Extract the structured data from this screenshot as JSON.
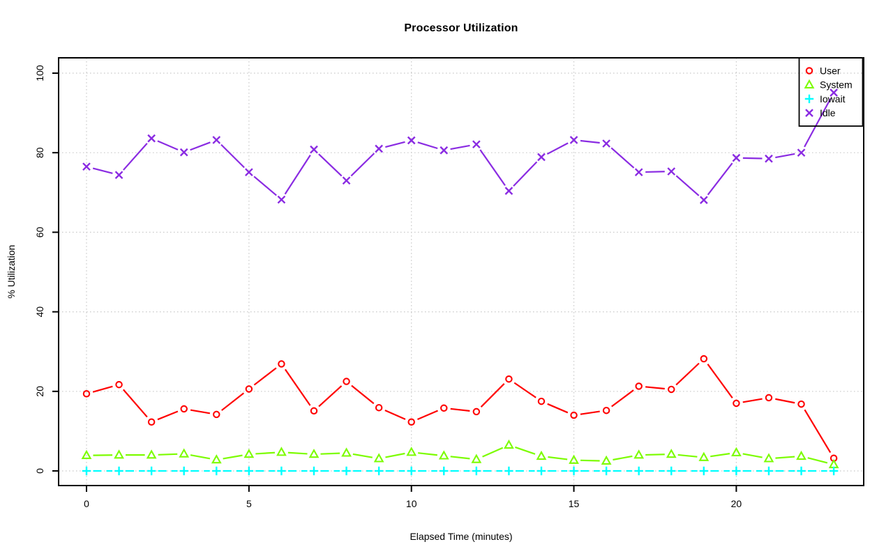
{
  "chart_data": {
    "type": "line",
    "title": "Processor Utilization",
    "xlabel": "Elapsed Time (minutes)",
    "ylabel": "% Utilization",
    "x": [
      0,
      1,
      2,
      3,
      4,
      5,
      6,
      7,
      8,
      9,
      10,
      11,
      12,
      13,
      14,
      15,
      16,
      17,
      18,
      19,
      20,
      21,
      22,
      23
    ],
    "xticks": [
      0,
      5,
      10,
      15,
      20
    ],
    "yticks": [
      0,
      20,
      40,
      60,
      80,
      100
    ],
    "xlim": [
      0,
      23.9
    ],
    "ylim": [
      0,
      100
    ],
    "grid": "dotted",
    "grid_color": "#c8c8c8",
    "box_color": "#000000",
    "legend_position": "top-right",
    "legend_labels": [
      "User",
      "System",
      "Iowait",
      "Idle"
    ],
    "series": [
      {
        "name": "User",
        "marker": "circle",
        "color": "#ff0000",
        "linestyle": "solid",
        "values": [
          19.4,
          21.7,
          12.3,
          15.6,
          14.2,
          20.6,
          26.9,
          15.1,
          22.5,
          15.9,
          12.3,
          15.8,
          14.9,
          23.1,
          17.5,
          14.0,
          15.2,
          21.3,
          20.5,
          28.2,
          17.0,
          18.4,
          16.8,
          3.2
        ]
      },
      {
        "name": "System",
        "marker": "triangle",
        "color": "#7cfc00",
        "linestyle": "solid",
        "values": [
          3.9,
          4.0,
          4.0,
          4.3,
          2.8,
          4.2,
          4.7,
          4.2,
          4.5,
          3.1,
          4.7,
          3.8,
          2.9,
          6.5,
          3.7,
          2.7,
          2.5,
          4.0,
          4.2,
          3.4,
          4.6,
          3.1,
          3.7,
          1.6
        ]
      },
      {
        "name": "Iowait",
        "marker": "plus",
        "color": "#00ffff",
        "linestyle": "dashed",
        "values": [
          0,
          0,
          0,
          0,
          0,
          0,
          0,
          0,
          0,
          0,
          0,
          0,
          0,
          0,
          0,
          0,
          0,
          0,
          0,
          0,
          0,
          0,
          0,
          0
        ]
      },
      {
        "name": "Idle",
        "marker": "x",
        "color": "#8a2be2",
        "linestyle": "solid",
        "values": [
          76.5,
          74.4,
          83.6,
          80.1,
          83.2,
          75.1,
          68.2,
          80.8,
          73.0,
          81.0,
          83.1,
          80.6,
          82.1,
          70.4,
          78.9,
          83.2,
          82.3,
          75.1,
          75.3,
          68.1,
          78.7,
          78.5,
          80.0,
          95.1
        ]
      }
    ]
  }
}
